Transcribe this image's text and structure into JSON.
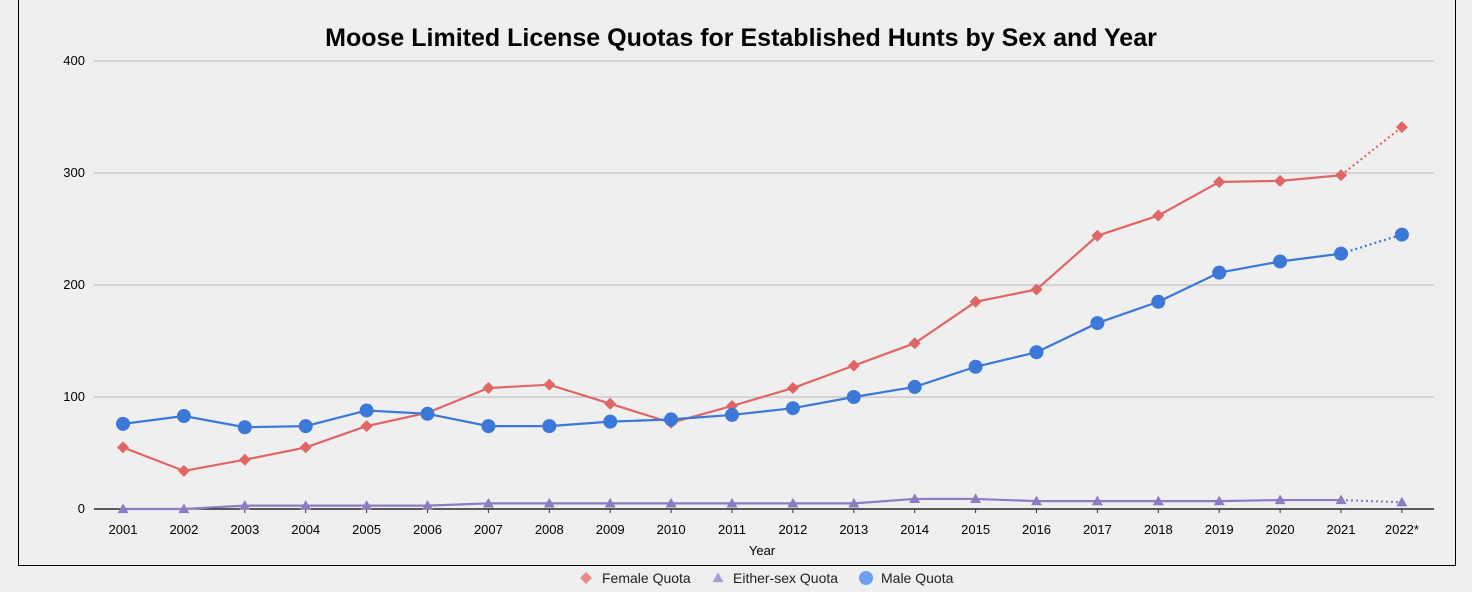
{
  "chart_data": {
    "type": "line",
    "title": "Moose Limited License Quotas for Established Hunts by Sex and Year",
    "xlabel": "Year",
    "ylabel": "",
    "categories": [
      "2001",
      "2002",
      "2003",
      "2004",
      "2005",
      "2006",
      "2007",
      "2008",
      "2009",
      "2010",
      "2011",
      "2012",
      "2013",
      "2014",
      "2015",
      "2016",
      "2017",
      "2018",
      "2019",
      "2020",
      "2021",
      "2022*"
    ],
    "ylim": [
      0,
      400
    ],
    "yticks": [
      "0",
      "100",
      "200",
      "300",
      "400"
    ],
    "grid": true,
    "legend_position": "bottom",
    "projected_last_point": true,
    "series": [
      {
        "name": "Female Quota",
        "marker": "diamond",
        "color": "#e06666",
        "values": [
          55,
          34,
          44,
          55,
          74,
          86,
          108,
          111,
          94,
          77,
          92,
          108,
          128,
          148,
          185,
          196,
          244,
          262,
          292,
          293,
          298,
          341
        ]
      },
      {
        "name": "Either-sex Quota",
        "marker": "triangle",
        "color": "#8e7cc3",
        "values": [
          0,
          0,
          3,
          3,
          3,
          3,
          5,
          5,
          5,
          5,
          5,
          5,
          5,
          9,
          9,
          7,
          7,
          7,
          7,
          8,
          8,
          6
        ]
      },
      {
        "name": "Male Quota",
        "marker": "circle",
        "color": "#3c78d8",
        "values": [
          76,
          83,
          73,
          74,
          88,
          85,
          74,
          74,
          78,
          80,
          84,
          90,
          100,
          109,
          127,
          140,
          166,
          185,
          211,
          221,
          228,
          245
        ]
      }
    ]
  }
}
